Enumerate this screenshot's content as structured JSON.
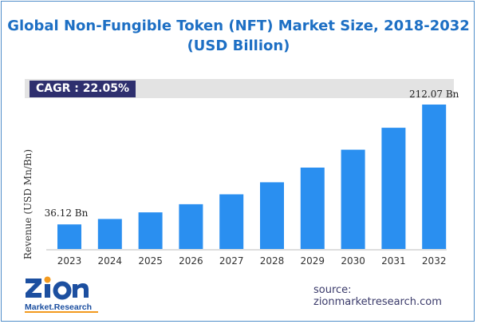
{
  "chart_data": {
    "type": "bar",
    "title_line1": "Global Non-Fungible Token (NFT) Market Size, 2018-2032",
    "title_line2": "(USD Billion)",
    "ylabel": "Revenue (USD Mn/Bn)",
    "xlabel": "",
    "categories": [
      "2023",
      "2024",
      "2025",
      "2026",
      "2027",
      "2028",
      "2029",
      "2030",
      "2031",
      "2032"
    ],
    "values": [
      36.12,
      44.1,
      53.8,
      65.7,
      80.2,
      97.9,
      119.5,
      145.8,
      178.0,
      212.07
    ],
    "data_labels": {
      "first": "36.12 Bn",
      "last": "212.07 Bn"
    },
    "ylim": [
      0,
      225
    ],
    "grid": false,
    "bar_color": "#2a8ff0"
  },
  "cagr": {
    "label": "CAGR :",
    "value": "22.05%"
  },
  "logo": {
    "word": "Zion",
    "sub": "Market.Research"
  },
  "source": "source: zionmarketresearch.com",
  "colors": {
    "title": "#1d6fc4",
    "cagr_bg": "#2e2f6e",
    "band": "#e3e3e3",
    "logo_blue": "#1c4fa0",
    "logo_orange": "#f39a1e"
  }
}
